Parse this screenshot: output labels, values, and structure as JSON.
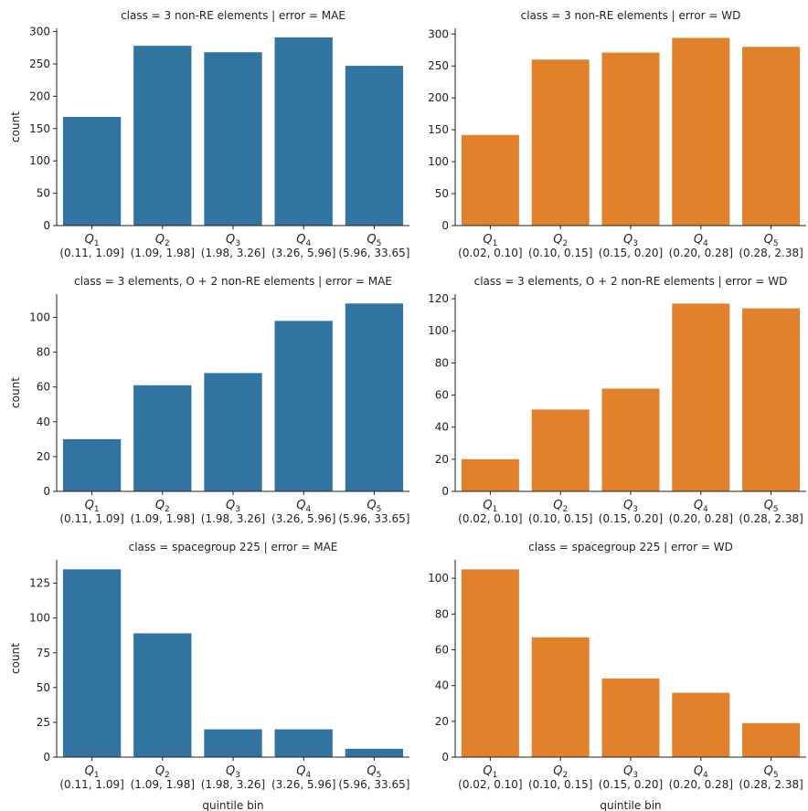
{
  "chart_data": [
    {
      "type": "bar",
      "title": "class = 3 non-RE elements | error = MAE",
      "ylabel": "count",
      "xlabel": "",
      "color": "#3274a1",
      "categories": [
        "Q1",
        "Q2",
        "Q3",
        "Q4",
        "Q5"
      ],
      "ranges": [
        "(0.11, 1.09]",
        "(1.09, 1.98]",
        "(1.98, 3.26]",
        "(3.26, 5.96]",
        "(5.96, 33.65]"
      ],
      "values": [
        168,
        278,
        268,
        291,
        247
      ],
      "ylim": [
        0,
        305
      ],
      "yticks": [
        0,
        50,
        100,
        150,
        200,
        250,
        300
      ]
    },
    {
      "type": "bar",
      "title": "class = 3 non-RE elements | error = WD",
      "ylabel": "",
      "xlabel": "",
      "color": "#e1812c",
      "categories": [
        "Q1",
        "Q2",
        "Q3",
        "Q4",
        "Q5"
      ],
      "ranges": [
        "(0.02, 0.10]",
        "(0.10, 0.15]",
        "(0.15, 0.20]",
        "(0.20, 0.28]",
        "(0.28, 2.38]"
      ],
      "values": [
        142,
        260,
        271,
        294,
        280
      ],
      "ylim": [
        0,
        309
      ],
      "yticks": [
        0,
        50,
        100,
        150,
        200,
        250,
        300
      ]
    },
    {
      "type": "bar",
      "title": "class = 3 elements, O + 2 non-RE elements | error = MAE",
      "ylabel": "count",
      "xlabel": "",
      "color": "#3274a1",
      "categories": [
        "Q1",
        "Q2",
        "Q3",
        "Q4",
        "Q5"
      ],
      "ranges": [
        "(0.11, 1.09]",
        "(1.09, 1.98]",
        "(1.98, 3.26]",
        "(3.26, 5.96]",
        "(5.96, 33.65]"
      ],
      "values": [
        30,
        61,
        68,
        98,
        108
      ],
      "ylim": [
        0,
        113.4
      ],
      "yticks": [
        0,
        20,
        40,
        60,
        80,
        100
      ]
    },
    {
      "type": "bar",
      "title": "class = 3 elements, O + 2 non-RE elements | error = WD",
      "ylabel": "",
      "xlabel": "",
      "color": "#e1812c",
      "categories": [
        "Q1",
        "Q2",
        "Q3",
        "Q4",
        "Q5"
      ],
      "ranges": [
        "(0.02, 0.10]",
        "(0.10, 0.15]",
        "(0.15, 0.20]",
        "(0.20, 0.28]",
        "(0.28, 2.38]"
      ],
      "values": [
        20,
        51,
        64,
        117,
        114
      ],
      "ylim": [
        0,
        122.9
      ],
      "yticks": [
        0,
        20,
        40,
        60,
        80,
        100,
        120
      ]
    },
    {
      "type": "bar",
      "title": "class = spacegroup 225 | error = MAE",
      "ylabel": "count",
      "xlabel": "quintile bin",
      "color": "#3274a1",
      "categories": [
        "Q1",
        "Q2",
        "Q3",
        "Q4",
        "Q5"
      ],
      "ranges": [
        "(0.11, 1.09]",
        "(1.09, 1.98]",
        "(1.98, 3.26]",
        "(3.26, 5.96]",
        "(5.96, 33.65]"
      ],
      "values": [
        135,
        89,
        20,
        20,
        6
      ],
      "ylim": [
        0,
        141.8
      ],
      "yticks": [
        0,
        25,
        50,
        75,
        100,
        125
      ]
    },
    {
      "type": "bar",
      "title": "class = spacegroup 225 | error = WD",
      "ylabel": "",
      "xlabel": "quintile bin",
      "color": "#e1812c",
      "categories": [
        "Q1",
        "Q2",
        "Q3",
        "Q4",
        "Q5"
      ],
      "ranges": [
        "(0.02, 0.10]",
        "(0.10, 0.15]",
        "(0.15, 0.20]",
        "(0.20, 0.28]",
        "(0.28, 2.38]"
      ],
      "values": [
        105,
        67,
        44,
        36,
        19
      ],
      "ylim": [
        0,
        110.3
      ],
      "yticks": [
        0,
        20,
        40,
        60,
        80,
        100
      ]
    }
  ]
}
